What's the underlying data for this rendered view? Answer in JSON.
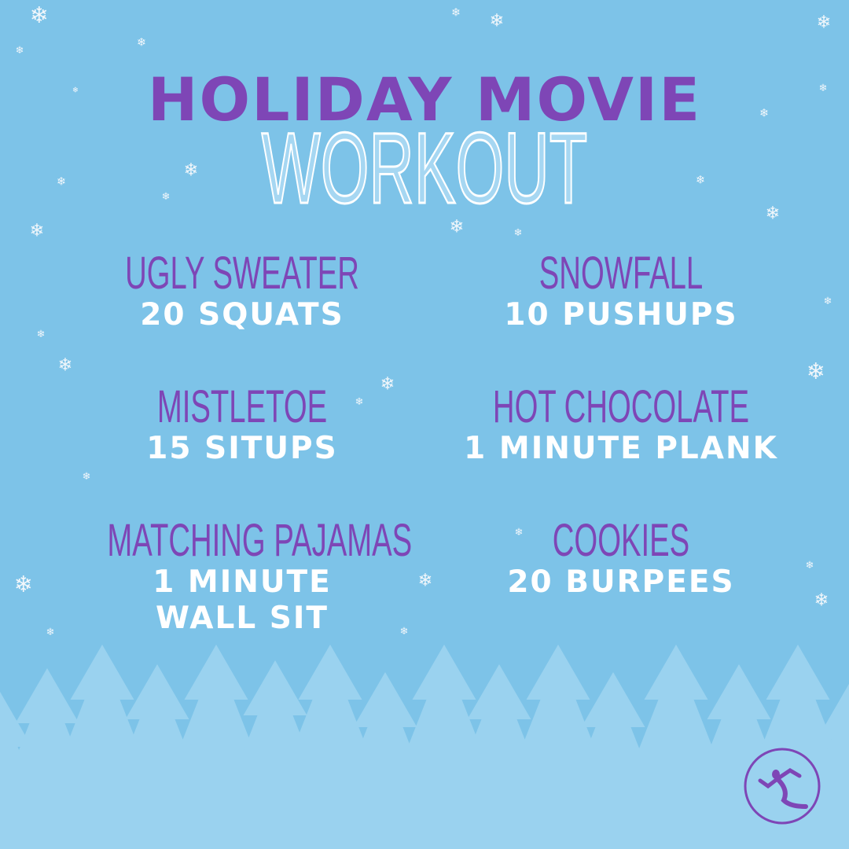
{
  "title_line1": "HOLIDAY MOVIE",
  "title_line2": "WORKOUT",
  "items": [
    {
      "name": "UGLY SWEATER",
      "exercise": "20 SQUATS"
    },
    {
      "name": "SNOWFALL",
      "exercise": "10 PUSHUPS"
    },
    {
      "name": "MISTLETOE",
      "exercise": "15 SITUPS"
    },
    {
      "name": "HOT CHOCOLATE",
      "exercise": "1 MINUTE PLANK"
    },
    {
      "name": "MATCHING PAJAMAS",
      "exercise": "1 MINUTE WALL SIT"
    },
    {
      "name": "COOKIES",
      "exercise": "20 BURPEES"
    }
  ],
  "colors": {
    "background": "#7dc3e8",
    "accent": "#7e46b6",
    "trees": "#9ad2ef",
    "text": "#ffffff"
  },
  "icons": [
    "snowflake-icon",
    "pine-tree-icon",
    "running-figure-logo"
  ]
}
